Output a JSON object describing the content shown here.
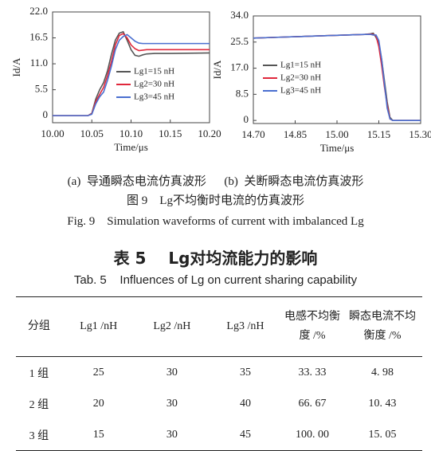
{
  "chart_data": [
    {
      "type": "line",
      "y_label": "Id/A",
      "x_label": "Time/μs",
      "x": [
        10.0,
        10.045,
        10.05,
        10.055,
        10.06,
        10.065,
        10.07,
        10.075,
        10.08,
        10.085,
        10.09,
        10.095,
        10.1,
        10.105,
        10.11,
        10.115,
        10.12,
        10.13,
        10.15,
        10.2
      ],
      "xlim": [
        10.0,
        10.2
      ],
      "xticks": [
        {
          "value": 10.0,
          "label": "10.00"
        },
        {
          "value": 10.05,
          "label": "10.05"
        },
        {
          "value": 10.1,
          "label": "10.10"
        },
        {
          "value": 10.15,
          "label": "10.15"
        },
        {
          "value": 10.2,
          "label": "10.20"
        }
      ],
      "ylim": [
        -1.5,
        22
      ],
      "yticks": [
        0,
        5.5,
        {
          "value": 11,
          "label": "11.0"
        },
        16.5,
        {
          "value": 22,
          "label": "22.0"
        }
      ],
      "series": [
        {
          "name": "Lg1=15 nH",
          "color": "#555555",
          "values": [
            0,
            0,
            0.5,
            3.5,
            5.5,
            7,
            9.5,
            13,
            16,
            17.5,
            17.8,
            16,
            14,
            12.8,
            12.6,
            12.9,
            13.1,
            13.2,
            13.2,
            13.3
          ]
        },
        {
          "name": "Lg2=30 nH",
          "color": "#e0283c",
          "values": [
            0,
            0,
            0.4,
            3,
            4.5,
            6,
            8.5,
            11.5,
            15,
            17,
            17.4,
            16.5,
            15,
            14.2,
            13.8,
            13.9,
            14,
            14,
            14,
            14
          ]
        },
        {
          "name": "Lg3=45 nH",
          "color": "#4a6fd0",
          "values": [
            0,
            0,
            0.3,
            2.5,
            4,
            5,
            7.5,
            10.5,
            14,
            16,
            16.8,
            17.2,
            16.5,
            15.8,
            15.4,
            15.3,
            15.3,
            15.3,
            15.3,
            15.3
          ]
        }
      ]
    },
    {
      "type": "line",
      "y_label": "Id/A",
      "x_label": "Time/μs",
      "x": [
        14.7,
        14.8,
        14.9,
        15.0,
        15.1,
        15.12,
        15.13,
        15.14,
        15.15,
        15.16,
        15.17,
        15.18,
        15.19,
        15.2,
        15.3
      ],
      "xlim": [
        14.7,
        15.3
      ],
      "xticks": [
        {
          "value": 14.7,
          "label": "14.70"
        },
        14.85,
        {
          "value": 15.0,
          "label": "15.00"
        },
        15.15,
        {
          "value": 15.3,
          "label": "15.30"
        }
      ],
      "ylim": [
        -1,
        34
      ],
      "yticks": [
        0,
        8.5,
        {
          "value": 17,
          "label": "17.0"
        },
        25.5,
        {
          "value": 34,
          "label": "34.0"
        }
      ],
      "series": [
        {
          "name": "Lg1=15 nH",
          "color": "#555555",
          "values": [
            26.8,
            27.1,
            27.4,
            27.7,
            28,
            28.2,
            28.4,
            27,
            25,
            20,
            13,
            6,
            1,
            0,
            0
          ]
        },
        {
          "name": "Lg2=30 nH",
          "color": "#e0283c",
          "values": [
            26.8,
            27.1,
            27.4,
            27.7,
            28,
            28.1,
            28,
            27.5,
            24,
            18,
            11,
            5,
            0.5,
            0,
            0
          ]
        },
        {
          "name": "Lg3=45 nH",
          "color": "#4a6fd0",
          "values": [
            26.8,
            27.1,
            27.4,
            27.7,
            28,
            28,
            27.8,
            27.8,
            26,
            20,
            12,
            4,
            0.5,
            0,
            0
          ]
        }
      ]
    }
  ],
  "figure": {
    "sub_a": "(a)  导通瞬态电流仿真波形",
    "sub_b": "(b)  关断瞬态电流仿真波形",
    "caption_cn": "图 9    Lg不均衡时电流的仿真波形",
    "caption_en": "Fig. 9    Simulation waveforms of current with imbalanced Lg"
  },
  "table": {
    "title_cn": "表 5    Lg对均流能力的影响",
    "title_en": "Tab. 5    Influences of Lg on current sharing capability",
    "header": [
      "分组",
      "Lg1 /nH",
      "Lg2 /nH",
      "Lg3 /nH",
      "电感不均衡度 /%",
      "瞬态电流不均衡度 /%"
    ],
    "rows": [
      [
        "1 组",
        "25",
        "30",
        "35",
        "33. 33",
        "4. 98"
      ],
      [
        "2 组",
        "20",
        "30",
        "40",
        "66. 67",
        "10. 43"
      ],
      [
        "3 组",
        "15",
        "30",
        "45",
        "100. 00",
        "15. 05"
      ]
    ]
  }
}
